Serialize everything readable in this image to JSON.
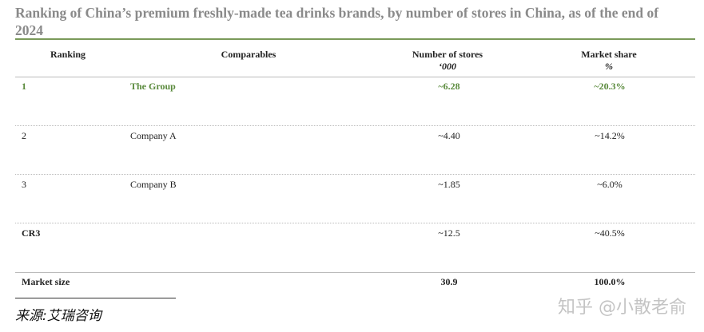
{
  "title": "Ranking of China’s premium freshly-made tea drinks brands, by number of stores in China, as of the end of 2024",
  "table": {
    "columns": [
      {
        "label": "Ranking"
      },
      {
        "label": "Comparables"
      },
      {
        "label": "Number of stores",
        "unit": "ʻ000"
      },
      {
        "label": "Market share",
        "unit": "%"
      }
    ],
    "rows": [
      [
        "1",
        "The Group",
        "~6.28",
        "~20.3%"
      ],
      [
        "2",
        "Company A",
        "~4.40",
        "~14.2%"
      ],
      [
        "3",
        "Company B",
        "~1.85",
        "~6.0%"
      ],
      [
        "CR3",
        "",
        "~12.5",
        "~40.5%"
      ],
      [
        "Market size",
        "",
        "30.9",
        "100.0%"
      ]
    ]
  },
  "source": "来源:艾瑞咨询",
  "watermark": "知乎 @小散老俞"
}
